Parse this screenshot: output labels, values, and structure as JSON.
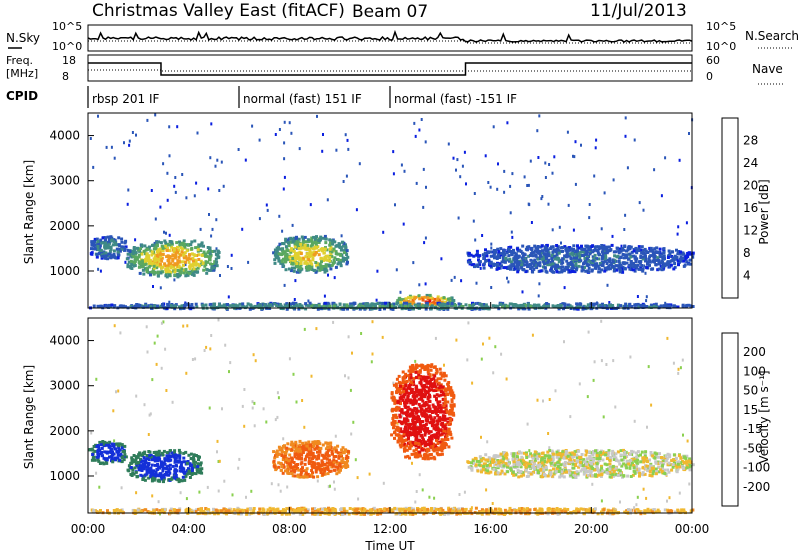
{
  "header": {
    "title": "Christmas Valley East (fitACF)",
    "beam": "Beam 07",
    "date": "11/Jul/2013"
  },
  "nsky_panel": {
    "left_label": "N.Sky",
    "right_label": "N.Search",
    "left_ticks": [
      "10^5",
      "10^0"
    ],
    "right_ticks": [
      "10^5",
      "10^0"
    ]
  },
  "freq_panel": {
    "left_label_1": "Freq.",
    "left_label_2": "[MHz]",
    "left_ticks": [
      "18",
      "8"
    ],
    "right_ticks": [
      "60",
      "0"
    ],
    "right_label": "Nave"
  },
  "cpid": {
    "label": "CPID",
    "segments": [
      {
        "label": "rbsp 201 IF",
        "start": 0.0,
        "end": 6.0
      },
      {
        "label": "normal (fast) 151 IF",
        "start": 6.0,
        "end": 12.0
      },
      {
        "label": "normal (fast) -151 IF",
        "start": 12.0,
        "end": 24.0
      }
    ]
  },
  "x_axis": {
    "label": "Time UT",
    "ticks": [
      "00:00",
      "04:00",
      "08:00",
      "12:00",
      "16:00",
      "20:00",
      "00:00"
    ],
    "range_hours": [
      0,
      24
    ]
  },
  "y_axis": {
    "label": "Slant Range [km]",
    "ticks": [
      "1000",
      "2000",
      "3000",
      "4000"
    ],
    "range_km": [
      180,
      4500
    ]
  },
  "power_scale": {
    "label": "Power [dB]",
    "ticks": [
      "4",
      "8",
      "12",
      "16",
      "20",
      "24",
      "28"
    ],
    "colors": [
      "#0a1ee0",
      "#2a55b8",
      "#3f8a86",
      "#5aa860",
      "#e0d030",
      "#f09a20",
      "#f06010",
      "#e01010"
    ]
  },
  "velocity_scale": {
    "label": "Velocity [m s⁻¹]",
    "ticks": [
      "200",
      "100",
      "50",
      "15",
      "-15",
      "-50",
      "-100",
      "-200"
    ],
    "colors": [
      "#1430d8",
      "#2f7c5a",
      "#4ca64c",
      "#8ad050",
      "#c8c8c8",
      "#f0b830",
      "#f08a20",
      "#f05a10",
      "#e01010"
    ]
  },
  "chart_data": [
    {
      "type": "heatmap",
      "name": "power",
      "regions": [
        {
          "t": [
            1.5,
            5.2
          ],
          "range": [
            900,
            1700
          ],
          "peak": 20
        },
        {
          "t": [
            7.3,
            10.3
          ],
          "range": [
            1000,
            1800
          ],
          "peak": 18
        },
        {
          "t": [
            0.0,
            1.5
          ],
          "range": [
            1300,
            1800
          ],
          "peak": 8
        },
        {
          "t": [
            12.2,
            14.5
          ],
          "range": [
            230,
            500
          ],
          "peak": 26
        },
        {
          "t": [
            15.0,
            24.0
          ],
          "range": [
            1000,
            1600
          ],
          "peak": 6
        },
        {
          "t": [
            0.0,
            24.0
          ],
          "range": [
            180,
            320
          ],
          "peak": 10
        }
      ]
    },
    {
      "type": "heatmap",
      "name": "velocity",
      "regions": [
        {
          "t": [
            1.5,
            4.5
          ],
          "range": [
            900,
            1600
          ],
          "mean": 200
        },
        {
          "t": [
            7.3,
            10.3
          ],
          "range": [
            1000,
            1800
          ],
          "mean": -100
        },
        {
          "t": [
            0.0,
            1.5
          ],
          "range": [
            1300,
            1800
          ],
          "mean": 200
        },
        {
          "t": [
            12.0,
            14.5
          ],
          "range": [
            1400,
            3500
          ],
          "mean": -200
        },
        {
          "t": [
            15.0,
            24.0
          ],
          "range": [
            1000,
            1600
          ],
          "mean": 0
        },
        {
          "t": [
            0.0,
            24.0
          ],
          "range": [
            180,
            320
          ],
          "mean": -30
        }
      ]
    }
  ]
}
